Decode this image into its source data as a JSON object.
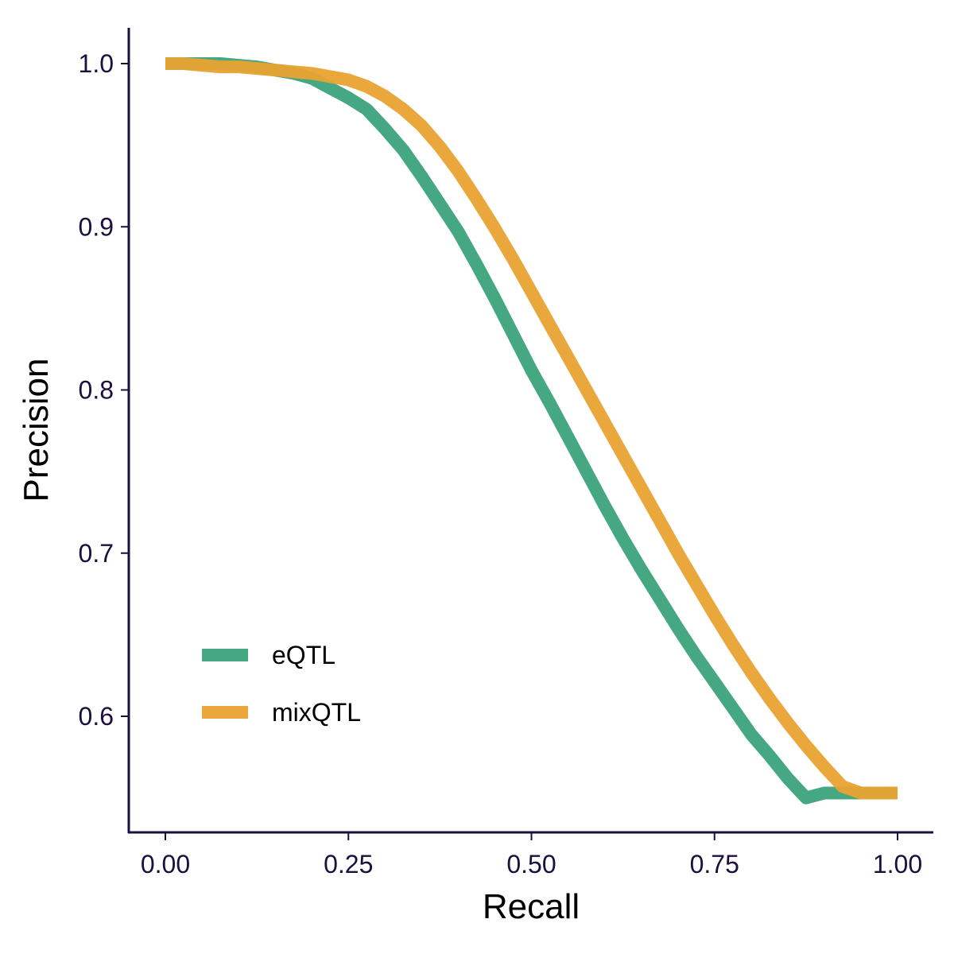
{
  "chart_data": {
    "type": "line",
    "title": "",
    "xlabel": "Recall",
    "ylabel": "Precision",
    "xlim": [
      0.0,
      1.0
    ],
    "ylim": [
      0.55,
      1.0
    ],
    "xticks": [
      "0.00",
      "0.25",
      "0.50",
      "0.75",
      "1.00"
    ],
    "yticks": [
      "0.6",
      "0.7",
      "0.8",
      "0.9",
      "1.0"
    ],
    "grid": false,
    "legend_position": "bottom-left",
    "series": [
      {
        "name": "eQTL",
        "color": "#3ba37c",
        "x": [
          0.0,
          0.025,
          0.05,
          0.075,
          0.1,
          0.125,
          0.15,
          0.175,
          0.2,
          0.225,
          0.25,
          0.275,
          0.3,
          0.325,
          0.35,
          0.375,
          0.4,
          0.425,
          0.45,
          0.475,
          0.5,
          0.525,
          0.55,
          0.575,
          0.6,
          0.625,
          0.65,
          0.675,
          0.7,
          0.725,
          0.75,
          0.775,
          0.8,
          0.825,
          0.85,
          0.875,
          0.9,
          0.925,
          0.95,
          0.975,
          1.0
        ],
        "y": [
          1.0,
          1.0,
          1.0,
          1.0,
          0.999,
          0.998,
          0.996,
          0.994,
          0.991,
          0.985,
          0.979,
          0.972,
          0.96,
          0.947,
          0.931,
          0.914,
          0.897,
          0.877,
          0.856,
          0.834,
          0.812,
          0.792,
          0.771,
          0.75,
          0.729,
          0.709,
          0.69,
          0.672,
          0.654,
          0.637,
          0.621,
          0.605,
          0.589,
          0.576,
          0.562,
          0.55,
          0.553,
          0.553,
          0.553,
          0.553,
          0.553
        ]
      },
      {
        "name": "mixQTL",
        "color": "#e9a231",
        "x": [
          0.0,
          0.025,
          0.05,
          0.075,
          0.1,
          0.125,
          0.15,
          0.175,
          0.2,
          0.225,
          0.25,
          0.275,
          0.3,
          0.325,
          0.35,
          0.375,
          0.4,
          0.425,
          0.45,
          0.475,
          0.5,
          0.525,
          0.55,
          0.575,
          0.6,
          0.625,
          0.65,
          0.675,
          0.7,
          0.725,
          0.75,
          0.775,
          0.8,
          0.825,
          0.85,
          0.875,
          0.9,
          0.925,
          0.95,
          0.975,
          1.0
        ],
        "y": [
          1.0,
          1.0,
          0.999,
          0.998,
          0.998,
          0.997,
          0.996,
          0.995,
          0.994,
          0.992,
          0.99,
          0.986,
          0.98,
          0.972,
          0.962,
          0.949,
          0.934,
          0.917,
          0.899,
          0.88,
          0.86,
          0.84,
          0.82,
          0.8,
          0.78,
          0.76,
          0.74,
          0.72,
          0.7,
          0.681,
          0.662,
          0.644,
          0.627,
          0.611,
          0.596,
          0.582,
          0.569,
          0.557,
          0.553,
          0.553,
          0.553
        ]
      }
    ]
  }
}
